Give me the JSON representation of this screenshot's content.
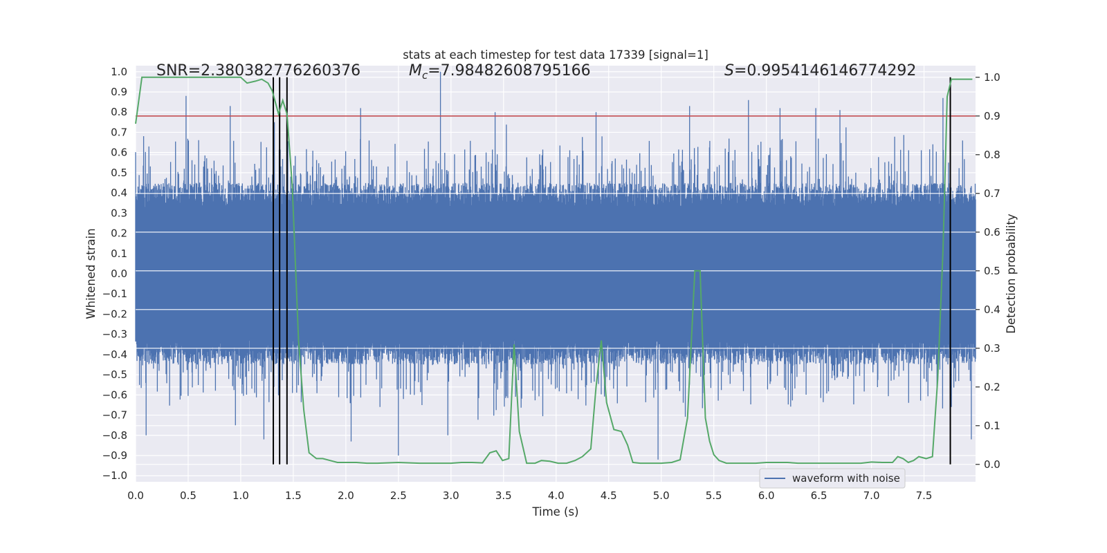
{
  "chart_data": {
    "type": "line",
    "title": "stats at each timestep for test data 17339 [signal=1]",
    "xlabel": "Time (s)",
    "ylabel_left": "Whitened strain",
    "ylabel_right": "Detection probability",
    "xlim": [
      0.0,
      7.99
    ],
    "ylim_left": [
      -1.03,
      1.03
    ],
    "ylim_right": [
      -0.045,
      1.03
    ],
    "xticks": [
      "0.0",
      "0.5",
      "1.0",
      "1.5",
      "2.0",
      "2.5",
      "3.0",
      "3.5",
      "4.0",
      "4.5",
      "5.0",
      "5.5",
      "6.0",
      "6.5",
      "7.0",
      "7.5"
    ],
    "xtick_values": [
      0,
      0.5,
      1,
      1.5,
      2,
      2.5,
      3,
      3.5,
      4,
      4.5,
      5,
      5.5,
      6,
      6.5,
      7,
      7.5
    ],
    "yticks_left": [
      "1.0",
      "0.9",
      "0.8",
      "0.7",
      "0.6",
      "0.5",
      "0.4",
      "0.3",
      "0.2",
      "0.1",
      "0.0",
      "−0.1",
      "−0.2",
      "−0.3",
      "−0.4",
      "−0.5",
      "−0.6",
      "−0.7",
      "−0.8",
      "−0.9",
      "−1.0"
    ],
    "ytick_values_left": [
      1,
      0.9,
      0.8,
      0.7,
      0.6,
      0.5,
      0.4,
      0.3,
      0.2,
      0.1,
      0,
      -0.1,
      -0.2,
      -0.3,
      -0.4,
      -0.5,
      -0.6,
      -0.7,
      -0.8,
      -0.9,
      -1.0
    ],
    "yticks_right": [
      "1.0",
      "0.9",
      "0.8",
      "0.7",
      "0.6",
      "0.5",
      "0.4",
      "0.3",
      "0.2",
      "0.1",
      "0.0"
    ],
    "ytick_values_right": [
      1.0,
      0.9,
      0.8,
      0.7,
      0.6,
      0.5,
      0.4,
      0.3,
      0.2,
      0.1,
      0.0
    ],
    "annotations": {
      "snr": "SNR=2.380382776260376",
      "mc_symbol": "M",
      "mc_sub": "c",
      "mc_value": "=7.98482608795166",
      "s_symbol": "S",
      "s_value": "=0.9954146146774292"
    },
    "threshold": {
      "axis": "right",
      "value": 0.9,
      "color": "#c44e52"
    },
    "vertical_markers": {
      "x": [
        1.31,
        1.37,
        1.44,
        7.75
      ],
      "ymin_right": 0.0,
      "ymax_right": 1.0,
      "color": "#000000"
    },
    "waveform": {
      "name": "waveform with noise",
      "color": "#4c72b0",
      "axis": "left",
      "description_peaks": "dense noise spanning 0 to 7.99 s, typical envelope ±0.35, peaks up to about +1.0 and −0.92",
      "highlight_peaks": [
        [
          0.48,
          0.88
        ],
        [
          0.9,
          0.83
        ],
        [
          1.32,
          0.75
        ],
        [
          2.14,
          0.82
        ],
        [
          2.9,
          1.0
        ],
        [
          3.42,
          0.8
        ],
        [
          4.38,
          0.8
        ],
        [
          5.27,
          0.83
        ],
        [
          5.83,
          0.86
        ],
        [
          6.13,
          0.82
        ],
        [
          6.47,
          0.82
        ],
        [
          6.7,
          0.81
        ],
        [
          7.68,
          0.87
        ],
        [
          0.1,
          -0.8
        ],
        [
          0.95,
          -0.75
        ],
        [
          1.22,
          -0.82
        ],
        [
          2.05,
          -0.83
        ],
        [
          2.5,
          -0.9
        ],
        [
          2.97,
          -0.8
        ],
        [
          4.97,
          -0.92
        ],
        [
          7.95,
          -0.82
        ]
      ]
    },
    "probability": {
      "color": "#55a868",
      "axis": "right",
      "x": [
        0.0,
        0.06,
        0.16,
        0.3,
        0.5,
        0.7,
        0.9,
        1.0,
        1.06,
        1.14,
        1.2,
        1.26,
        1.3,
        1.36,
        1.4,
        1.44,
        1.49,
        1.55,
        1.6,
        1.65,
        1.72,
        1.78,
        1.85,
        1.92,
        2.0,
        2.1,
        2.2,
        2.3,
        2.5,
        2.7,
        2.9,
        3.0,
        3.1,
        3.2,
        3.3,
        3.37,
        3.43,
        3.49,
        3.55,
        3.6,
        3.65,
        3.72,
        3.8,
        3.86,
        3.94,
        4.02,
        4.1,
        4.18,
        4.25,
        4.33,
        4.38,
        4.43,
        4.48,
        4.55,
        4.62,
        4.68,
        4.73,
        4.8,
        4.9,
        5.0,
        5.1,
        5.18,
        5.25,
        5.32,
        5.37,
        5.42,
        5.46,
        5.5,
        5.55,
        5.62,
        5.7,
        5.8,
        5.9,
        6.0,
        6.1,
        6.2,
        6.3,
        6.4,
        6.5,
        6.6,
        6.7,
        6.8,
        6.9,
        7.0,
        7.1,
        7.2,
        7.25,
        7.3,
        7.35,
        7.4,
        7.45,
        7.52,
        7.58,
        7.63,
        7.68,
        7.72,
        7.76,
        7.79,
        7.83,
        7.88,
        7.92,
        7.96
      ],
      "y": [
        0.88,
        1.0,
        1.0,
        1.0,
        1.0,
        1.0,
        1.0,
        1.0,
        0.985,
        0.99,
        0.995,
        0.985,
        0.965,
        0.905,
        0.94,
        0.905,
        0.72,
        0.32,
        0.14,
        0.03,
        0.015,
        0.015,
        0.01,
        0.005,
        0.005,
        0.005,
        0.003,
        0.003,
        0.005,
        0.003,
        0.003,
        0.003,
        0.005,
        0.005,
        0.004,
        0.03,
        0.035,
        0.01,
        0.015,
        0.31,
        0.085,
        0.003,
        0.003,
        0.01,
        0.008,
        0.003,
        0.003,
        0.01,
        0.02,
        0.04,
        0.2,
        0.32,
        0.16,
        0.09,
        0.085,
        0.05,
        0.005,
        0.003,
        0.003,
        0.003,
        0.005,
        0.012,
        0.12,
        0.5,
        0.5,
        0.12,
        0.06,
        0.025,
        0.01,
        0.003,
        0.003,
        0.003,
        0.003,
        0.005,
        0.005,
        0.005,
        0.003,
        0.003,
        0.003,
        0.003,
        0.003,
        0.003,
        0.003,
        0.006,
        0.005,
        0.005,
        0.02,
        0.015,
        0.005,
        0.01,
        0.02,
        0.015,
        0.02,
        0.22,
        0.55,
        0.95,
        0.995,
        0.995,
        0.995,
        0.995,
        0.995,
        0.995
      ]
    },
    "legend": {
      "position": "bottom-right",
      "entries": [
        "waveform with noise"
      ]
    },
    "grid": true,
    "style": {
      "plot_background": "#eaeaf2",
      "grid_color": "#ffffff"
    }
  }
}
